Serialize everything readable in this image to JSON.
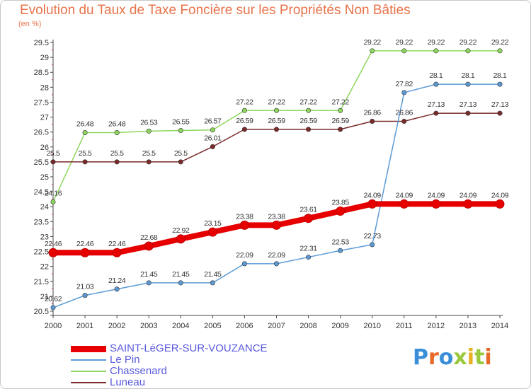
{
  "title": "Evolution du Taux de Taxe Foncière sur les Propriétés Non Bâties",
  "unit": "(en %)",
  "logo": {
    "text": "Proxiti",
    "colors": [
      "#3a8fd8",
      "#e86a2a",
      "#3a8fd8",
      "#9ac83c",
      "#e8b020",
      "#9ac83c",
      "#e86a2a"
    ]
  },
  "chart_data": {
    "type": "line",
    "x": [
      2000,
      2001,
      2002,
      2003,
      2004,
      2005,
      2006,
      2007,
      2008,
      2009,
      2010,
      2011,
      2012,
      2013,
      2014
    ],
    "yticks": [
      "20.5",
      "21",
      "21.5",
      "22",
      "22.5",
      "23",
      "23.5",
      "24",
      "24.5",
      "25",
      "25.5",
      "26",
      "26.5",
      "27",
      "27.5",
      "28",
      "28.5",
      "29",
      "29.5"
    ],
    "ylim": [
      20.5,
      29.5
    ],
    "grid": false,
    "series": [
      {
        "name": "SAINT-LéGER-SUR-VOUZANCE",
        "color": "#e60000",
        "width": 8,
        "marker": 6,
        "values": [
          22.46,
          22.46,
          22.46,
          22.68,
          22.92,
          23.15,
          23.38,
          23.38,
          23.61,
          23.85,
          24.09,
          24.09,
          24.09,
          24.09,
          24.09
        ],
        "labels": [
          "22.46",
          "22.46",
          "22.46",
          "22.68",
          "22.92",
          "23.15",
          "23.38",
          "23.38",
          "23.61",
          "23.85",
          "24.09",
          "24.09",
          "24.09",
          "24.09",
          "24.09"
        ]
      },
      {
        "name": "Le Pin",
        "color": "#5b9bd5",
        "width": 1.5,
        "marker": 3.2,
        "values": [
          20.62,
          21.03,
          21.24,
          21.45,
          21.45,
          21.45,
          22.09,
          22.09,
          22.31,
          22.53,
          22.73,
          27.82,
          28.1,
          28.1,
          28.1
        ],
        "labels": [
          "20.62",
          "21.03",
          "21.24",
          "21.45",
          "21.45",
          "21.45",
          "22.09",
          "22.09",
          "22.31",
          "22.53",
          "22.73",
          "27.82",
          "28.1",
          "28.1",
          "28.1"
        ]
      },
      {
        "name": "Chassenard",
        "color": "#8ed65e",
        "width": 1.5,
        "marker": 3.2,
        "values": [
          24.16,
          26.48,
          26.48,
          26.53,
          26.55,
          26.57,
          27.22,
          27.22,
          27.22,
          27.22,
          29.22,
          29.22,
          29.22,
          29.22,
          29.22
        ],
        "labels": [
          "24.16",
          "26.48",
          "26.48",
          "26.53",
          "26.55",
          "26.57",
          "27.22",
          "27.22",
          "27.22",
          "27.22",
          "29.22",
          "29.22",
          "29.22",
          "29.22",
          "29.22"
        ]
      },
      {
        "name": "Luneau",
        "color": "#7a2a2a",
        "width": 1.5,
        "marker": 3.2,
        "values": [
          25.5,
          25.5,
          25.5,
          25.5,
          25.5,
          26.01,
          26.59,
          26.59,
          26.59,
          26.59,
          26.86,
          26.86,
          27.13,
          27.13,
          27.13
        ],
        "labels": [
          "25.5",
          "25.5",
          "25.5",
          "25.5",
          "25.5",
          "26.01",
          "26.59",
          "26.59",
          "26.59",
          "26.59",
          "26.86",
          "26.86",
          "27.13",
          "27.13",
          "27.13"
        ]
      }
    ]
  }
}
